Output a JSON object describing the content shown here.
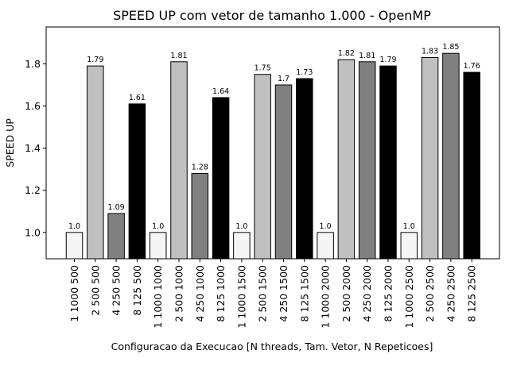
{
  "chart_data": {
    "type": "bar",
    "title": "SPEED UP com vetor de tamanho 1.000 - OpenMP",
    "xlabel": "Configuracao da Execucao [N threads, Tam. Vetor, N Repeticoes]",
    "ylabel": "SPEED UP",
    "ylim": [
      0.875,
      1.975
    ],
    "yticks": [
      "1.0",
      "1.2",
      "1.4",
      "1.6",
      "1.8"
    ],
    "grid": false,
    "categories": [
      "1 1000 500",
      "2 500 500",
      "4 250 500",
      "8 125 500",
      "1 1000 1000",
      "2 500 1000",
      "4 250 1000",
      "8 125 1000",
      "1 1000 1500",
      "2 500 1500",
      "4 250 1500",
      "8 125 1500",
      "1 1000 2000",
      "2 500 2000",
      "4 250 2000",
      "8 125 2000",
      "1 1000 2500",
      "2 500 2500",
      "4 250 2500",
      "8 125 2500"
    ],
    "values": [
      1.0,
      1.79,
      1.09,
      1.61,
      1.0,
      1.81,
      1.28,
      1.64,
      1.0,
      1.75,
      1.7,
      1.73,
      1.0,
      1.82,
      1.81,
      1.79,
      1.0,
      1.83,
      1.85,
      1.76
    ],
    "value_labels": [
      "1.0",
      "1.79",
      "1.09",
      "1.61",
      "1.0",
      "1.81",
      "1.28",
      "1.64",
      "1.0",
      "1.75",
      "1.7",
      "1.73",
      "1.0",
      "1.82",
      "1.81",
      "1.79",
      "1.0",
      "1.83",
      "1.85",
      "1.76"
    ],
    "bar_colors": [
      "#f5f5f5",
      "#c0c0c0",
      "#808080",
      "#000000"
    ],
    "edge_color": "#000000"
  }
}
